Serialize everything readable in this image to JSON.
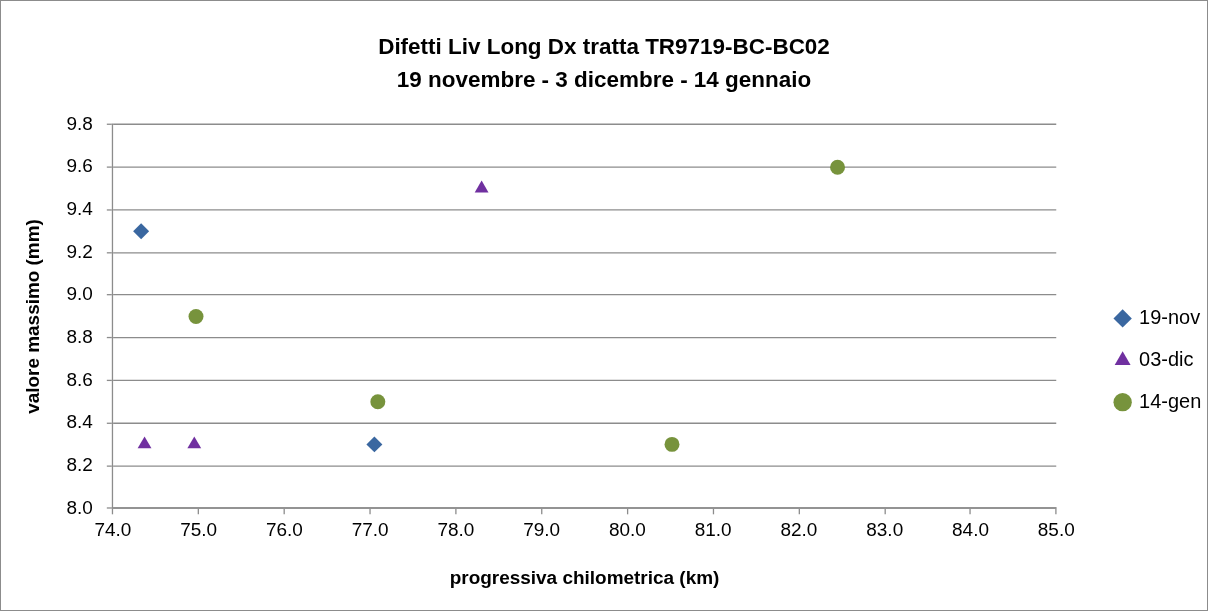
{
  "chart_data": {
    "type": "scatter",
    "title": "Difetti Liv Long Dx tratta TR9719-BC-BC02",
    "subtitle": "19 novembre - 3 dicembre - 14 gennaio",
    "xlabel": "progressiva chilometrica (km)",
    "ylabel": "valore massimo (mm)",
    "series": [
      {
        "name": "19-nov",
        "color": "#3a67a0",
        "marker": "diamond",
        "x": [
          74.33,
          77.05
        ],
        "values": [
          9.3,
          8.3
        ]
      },
      {
        "name": "03-dic",
        "color": "#7030a0",
        "marker": "triangle",
        "x": [
          74.37,
          74.95,
          78.3
        ],
        "values": [
          8.3,
          8.3,
          9.5
        ]
      },
      {
        "name": "14-gen",
        "color": "#77933c",
        "marker": "circle",
        "x": [
          74.97,
          77.09,
          80.52,
          82.45
        ],
        "values": [
          8.9,
          8.5,
          8.3,
          9.6
        ]
      }
    ],
    "xlim": [
      74,
      85
    ],
    "xticks": [
      {
        "value": 74,
        "label": "74.0"
      },
      {
        "value": 75,
        "label": "75.0"
      },
      {
        "value": 76,
        "label": "76.0"
      },
      {
        "value": 77,
        "label": "77.0"
      },
      {
        "value": 78,
        "label": "78.0"
      },
      {
        "value": 79,
        "label": "79.0"
      },
      {
        "value": 80,
        "label": "80.0"
      },
      {
        "value": 81,
        "label": "81.0"
      },
      {
        "value": 82,
        "label": "82.0"
      },
      {
        "value": 83,
        "label": "83.0"
      },
      {
        "value": 84,
        "label": "84.0"
      },
      {
        "value": 85,
        "label": "85.0"
      }
    ],
    "ylim": [
      8,
      9.8
    ],
    "yticks": [
      {
        "value": 8,
        "label": "8.0"
      },
      8.2,
      8.4,
      8.6,
      8.8,
      {
        "value": 9,
        "label": "9.0"
      },
      9.2,
      9.4,
      9.6,
      9.8
    ],
    "grid": "y",
    "legend": "right"
  }
}
